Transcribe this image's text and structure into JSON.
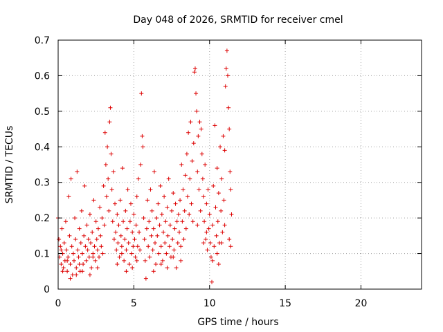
{
  "chart_data": {
    "type": "scatter",
    "title": "Day 048 of 2026, SRMTID for receiver cmel",
    "xlabel": "GPS time / hours",
    "ylabel": "SRMTID / TECUs",
    "xlim": [
      0,
      24
    ],
    "ylim": [
      0,
      0.7
    ],
    "xticks": [
      0,
      5,
      10,
      15,
      20
    ],
    "yticks": [
      0,
      0.1,
      0.2,
      0.3,
      0.4,
      0.5,
      0.6,
      0.7
    ],
    "xtick_labels": [
      "0",
      "5",
      "10",
      "15",
      "20"
    ],
    "ytick_labels": [
      "0",
      "0.1",
      "0.2",
      "0.3",
      "0.4",
      "0.5",
      "0.6",
      "0.7"
    ],
    "grid": true,
    "marker": "+",
    "color": "#dd0000",
    "series": [
      {
        "name": "SRMTID",
        "points": [
          [
            0.0,
            0.2
          ],
          [
            0.05,
            0.14
          ],
          [
            0.1,
            0.09
          ],
          [
            0.15,
            0.12
          ],
          [
            0.2,
            0.07
          ],
          [
            0.25,
            0.17
          ],
          [
            0.3,
            0.1
          ],
          [
            0.35,
            0.06
          ],
          [
            0.4,
            0.13
          ],
          [
            0.45,
            0.08
          ],
          [
            0.5,
            0.19
          ],
          [
            0.55,
            0.11
          ],
          [
            0.6,
            0.05
          ],
          [
            0.65,
            0.09
          ],
          [
            0.7,
            0.26
          ],
          [
            0.75,
            0.15
          ],
          [
            0.8,
            0.07
          ],
          [
            0.85,
            0.31
          ],
          [
            0.9,
            0.12
          ],
          [
            0.95,
            0.04
          ],
          [
            1.0,
            0.1
          ],
          [
            1.05,
            0.08
          ],
          [
            1.1,
            0.2
          ],
          [
            1.15,
            0.14
          ],
          [
            1.2,
            0.06
          ],
          [
            1.25,
            0.33
          ],
          [
            1.3,
            0.11
          ],
          [
            1.35,
            0.09
          ],
          [
            1.4,
            0.17
          ],
          [
            1.45,
            0.05
          ],
          [
            1.5,
            0.13
          ],
          [
            1.55,
            0.22
          ],
          [
            1.6,
            0.1
          ],
          [
            1.65,
            0.07
          ],
          [
            1.7,
            0.15
          ],
          [
            1.75,
            0.29
          ],
          [
            1.8,
            0.12
          ],
          [
            1.85,
            0.08
          ],
          [
            1.9,
            0.18
          ],
          [
            1.95,
            0.11
          ],
          [
            2.0,
            0.14
          ],
          [
            2.05,
            0.09
          ],
          [
            2.1,
            0.21
          ],
          [
            2.15,
            0.13
          ],
          [
            2.2,
            0.06
          ],
          [
            2.25,
            0.16
          ],
          [
            2.3,
            0.1
          ],
          [
            2.35,
            0.25
          ],
          [
            2.4,
            0.12
          ],
          [
            2.45,
            0.08
          ],
          [
            2.5,
            0.19
          ],
          [
            2.55,
            0.14
          ],
          [
            2.6,
            0.11
          ],
          [
            2.65,
            0.17
          ],
          [
            2.7,
            0.09
          ],
          [
            2.75,
            0.23
          ],
          [
            2.8,
            0.15
          ],
          [
            2.85,
            0.12
          ],
          [
            2.9,
            0.2
          ],
          [
            2.95,
            0.1
          ],
          [
            3.0,
            0.29
          ],
          [
            3.05,
            0.18
          ],
          [
            3.1,
            0.44
          ],
          [
            3.15,
            0.35
          ],
          [
            3.2,
            0.26
          ],
          [
            3.25,
            0.4
          ],
          [
            3.3,
            0.31
          ],
          [
            3.35,
            0.22
          ],
          [
            3.4,
            0.47
          ],
          [
            3.45,
            0.51
          ],
          [
            3.5,
            0.38
          ],
          [
            3.55,
            0.28
          ],
          [
            3.6,
            0.19
          ],
          [
            3.65,
            0.33
          ],
          [
            3.7,
            0.14
          ],
          [
            3.75,
            0.24
          ],
          [
            3.8,
            0.16
          ],
          [
            3.85,
            0.11
          ],
          [
            3.9,
            0.21
          ],
          [
            3.95,
            0.13
          ],
          [
            4.0,
            0.18
          ],
          [
            4.05,
            0.09
          ],
          [
            4.1,
            0.25
          ],
          [
            4.15,
            0.15
          ],
          [
            4.2,
            0.12
          ],
          [
            4.25,
            0.34
          ],
          [
            4.3,
            0.19
          ],
          [
            4.35,
            0.08
          ],
          [
            4.4,
            0.14
          ],
          [
            4.45,
            0.22
          ],
          [
            4.5,
            0.11
          ],
          [
            4.55,
            0.17
          ],
          [
            4.6,
            0.28
          ],
          [
            4.65,
            0.13
          ],
          [
            4.7,
            0.07
          ],
          [
            4.75,
            0.19
          ],
          [
            4.8,
            0.24
          ],
          [
            4.85,
            0.1
          ],
          [
            4.9,
            0.16
          ],
          [
            4.95,
            0.12
          ],
          [
            5.0,
            0.21
          ],
          [
            5.05,
            0.14
          ],
          [
            5.1,
            0.09
          ],
          [
            5.15,
            0.18
          ],
          [
            5.2,
            0.26
          ],
          [
            5.25,
            0.12
          ],
          [
            5.3,
            0.31
          ],
          [
            5.35,
            0.16
          ],
          [
            5.4,
            0.11
          ],
          [
            5.45,
            0.35
          ],
          [
            5.5,
            0.55
          ],
          [
            5.55,
            0.43
          ],
          [
            5.6,
            0.4
          ],
          [
            5.65,
            0.2
          ],
          [
            5.7,
            0.14
          ],
          [
            5.75,
            0.08
          ],
          [
            5.8,
            0.03
          ],
          [
            5.85,
            0.17
          ],
          [
            5.9,
            0.25
          ],
          [
            5.95,
            0.12
          ],
          [
            6.0,
            0.19
          ],
          [
            6.05,
            0.09
          ],
          [
            6.1,
            0.28
          ],
          [
            6.15,
            0.15
          ],
          [
            6.2,
            0.22
          ],
          [
            6.25,
            0.11
          ],
          [
            6.3,
            0.17
          ],
          [
            6.35,
            0.33
          ],
          [
            6.4,
            0.13
          ],
          [
            6.45,
            0.07
          ],
          [
            6.5,
            0.2
          ],
          [
            6.55,
            0.15
          ],
          [
            6.6,
            0.24
          ],
          [
            6.65,
            0.1
          ],
          [
            6.7,
            0.18
          ],
          [
            6.75,
            0.29
          ],
          [
            6.8,
            0.12
          ],
          [
            6.85,
            0.21
          ],
          [
            6.9,
            0.08
          ],
          [
            6.95,
            0.16
          ],
          [
            7.0,
            0.26
          ],
          [
            7.05,
            0.13
          ],
          [
            7.1,
            0.19
          ],
          [
            7.15,
            0.1
          ],
          [
            7.2,
            0.23
          ],
          [
            7.25,
            0.15
          ],
          [
            7.3,
            0.31
          ],
          [
            7.35,
            0.12
          ],
          [
            7.4,
            0.18
          ],
          [
            7.45,
            0.09
          ],
          [
            7.5,
            0.22
          ],
          [
            7.55,
            0.14
          ],
          [
            7.6,
            0.27
          ],
          [
            7.65,
            0.11
          ],
          [
            7.7,
            0.17
          ],
          [
            7.75,
            0.24
          ],
          [
            7.8,
            0.06
          ],
          [
            7.85,
            0.19
          ],
          [
            7.9,
            0.13
          ],
          [
            7.95,
            0.21
          ],
          [
            8.0,
            0.16
          ],
          [
            8.05,
            0.25
          ],
          [
            8.1,
            0.12
          ],
          [
            8.15,
            0.35
          ],
          [
            8.2,
            0.19
          ],
          [
            8.25,
            0.28
          ],
          [
            8.3,
            0.14
          ],
          [
            8.35,
            0.22
          ],
          [
            8.4,
            0.32
          ],
          [
            8.45,
            0.17
          ],
          [
            8.5,
            0.38
          ],
          [
            8.55,
            0.26
          ],
          [
            8.6,
            0.44
          ],
          [
            8.65,
            0.21
          ],
          [
            8.7,
            0.31
          ],
          [
            8.75,
            0.47
          ],
          [
            8.8,
            0.24
          ],
          [
            8.85,
            0.36
          ],
          [
            8.9,
            0.19
          ],
          [
            8.95,
            0.41
          ],
          [
            9.0,
            0.61
          ],
          [
            9.05,
            0.62
          ],
          [
            9.1,
            0.55
          ],
          [
            9.15,
            0.5
          ],
          [
            9.2,
            0.33
          ],
          [
            9.25,
            0.43
          ],
          [
            9.3,
            0.28
          ],
          [
            9.35,
            0.47
          ],
          [
            9.4,
            0.22
          ],
          [
            9.45,
            0.45
          ],
          [
            9.5,
            0.38
          ],
          [
            9.55,
            0.31
          ],
          [
            9.6,
            0.26
          ],
          [
            9.65,
            0.19
          ],
          [
            9.7,
            0.35
          ],
          [
            9.75,
            0.14
          ],
          [
            9.8,
            0.24
          ],
          [
            9.85,
            0.11
          ],
          [
            9.9,
            0.28
          ],
          [
            9.95,
            0.17
          ],
          [
            10.0,
            0.21
          ],
          [
            10.05,
            0.13
          ],
          [
            10.1,
            0.09
          ],
          [
            10.15,
            0.02
          ],
          [
            10.2,
            0.18
          ],
          [
            10.25,
            0.29
          ],
          [
            10.3,
            0.12
          ],
          [
            10.35,
            0.46
          ],
          [
            10.4,
            0.23
          ],
          [
            10.45,
            0.15
          ],
          [
            10.5,
            0.34
          ],
          [
            10.55,
            0.19
          ],
          [
            10.6,
            0.27
          ],
          [
            10.65,
            0.13
          ],
          [
            10.7,
            0.4
          ],
          [
            10.75,
            0.22
          ],
          [
            10.8,
            0.31
          ],
          [
            10.85,
            0.16
          ],
          [
            10.9,
            0.43
          ],
          [
            10.95,
            0.25
          ],
          [
            11.0,
            0.39
          ],
          [
            11.05,
            0.57
          ],
          [
            11.1,
            0.62
          ],
          [
            11.15,
            0.67
          ],
          [
            11.2,
            0.6
          ],
          [
            11.25,
            0.51
          ],
          [
            11.3,
            0.45
          ],
          [
            11.35,
            0.33
          ],
          [
            11.4,
            0.28
          ],
          [
            11.45,
            0.21
          ],
          [
            0.3,
            0.05
          ],
          [
            0.8,
            0.03
          ],
          [
            1.2,
            0.04
          ],
          [
            1.6,
            0.05
          ],
          [
            2.1,
            0.04
          ],
          [
            2.6,
            0.06
          ],
          [
            0.6,
            0.08
          ],
          [
            1.4,
            0.07
          ],
          [
            2.3,
            0.09
          ],
          [
            0.2,
            0.11
          ],
          [
            4.5,
            0.05
          ],
          [
            4.9,
            0.06
          ],
          [
            5.2,
            0.08
          ],
          [
            6.3,
            0.05
          ],
          [
            6.8,
            0.07
          ],
          [
            7.2,
            0.06
          ],
          [
            7.6,
            0.09
          ],
          [
            8.1,
            0.08
          ],
          [
            3.9,
            0.07
          ],
          [
            4.2,
            0.1
          ],
          [
            9.8,
            0.16
          ],
          [
            10.2,
            0.08
          ],
          [
            10.5,
            0.1
          ],
          [
            10.8,
            0.13
          ],
          [
            10.6,
            0.07
          ],
          [
            11.0,
            0.18
          ],
          [
            11.3,
            0.14
          ],
          [
            11.4,
            0.12
          ],
          [
            9.2,
            0.18
          ],
          [
            9.6,
            0.13
          ]
        ]
      }
    ]
  }
}
